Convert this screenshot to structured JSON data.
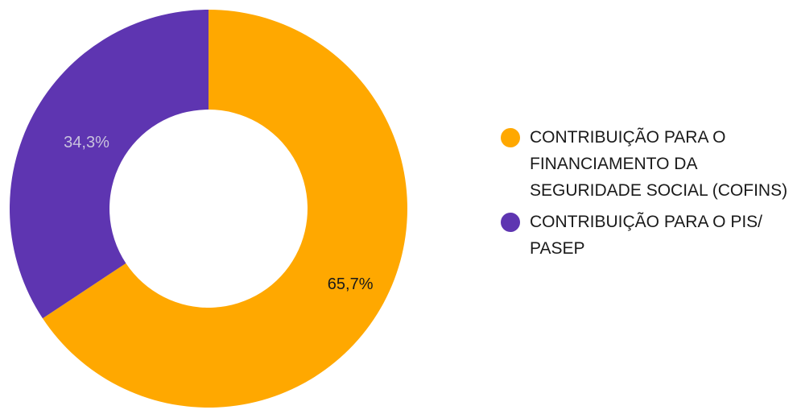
{
  "chart_data": {
    "type": "pie",
    "donut": true,
    "title": "",
    "legend_position": "right",
    "categories": [
      "CONTRIBUIÇÃO PARA O FINANCIAMENTO DA SEGURIDADE SOCIAL (COFINS)",
      "CONTRIBUIÇÃO PARA O PIS/ PASEP"
    ],
    "values": [
      65.7,
      34.3
    ],
    "labels": [
      "65,7%",
      "34,3%"
    ],
    "colors": [
      "#FFA800",
      "#5E35B1"
    ],
    "label_colors": [
      "#1a1a1a",
      "#c9c3dd"
    ]
  }
}
